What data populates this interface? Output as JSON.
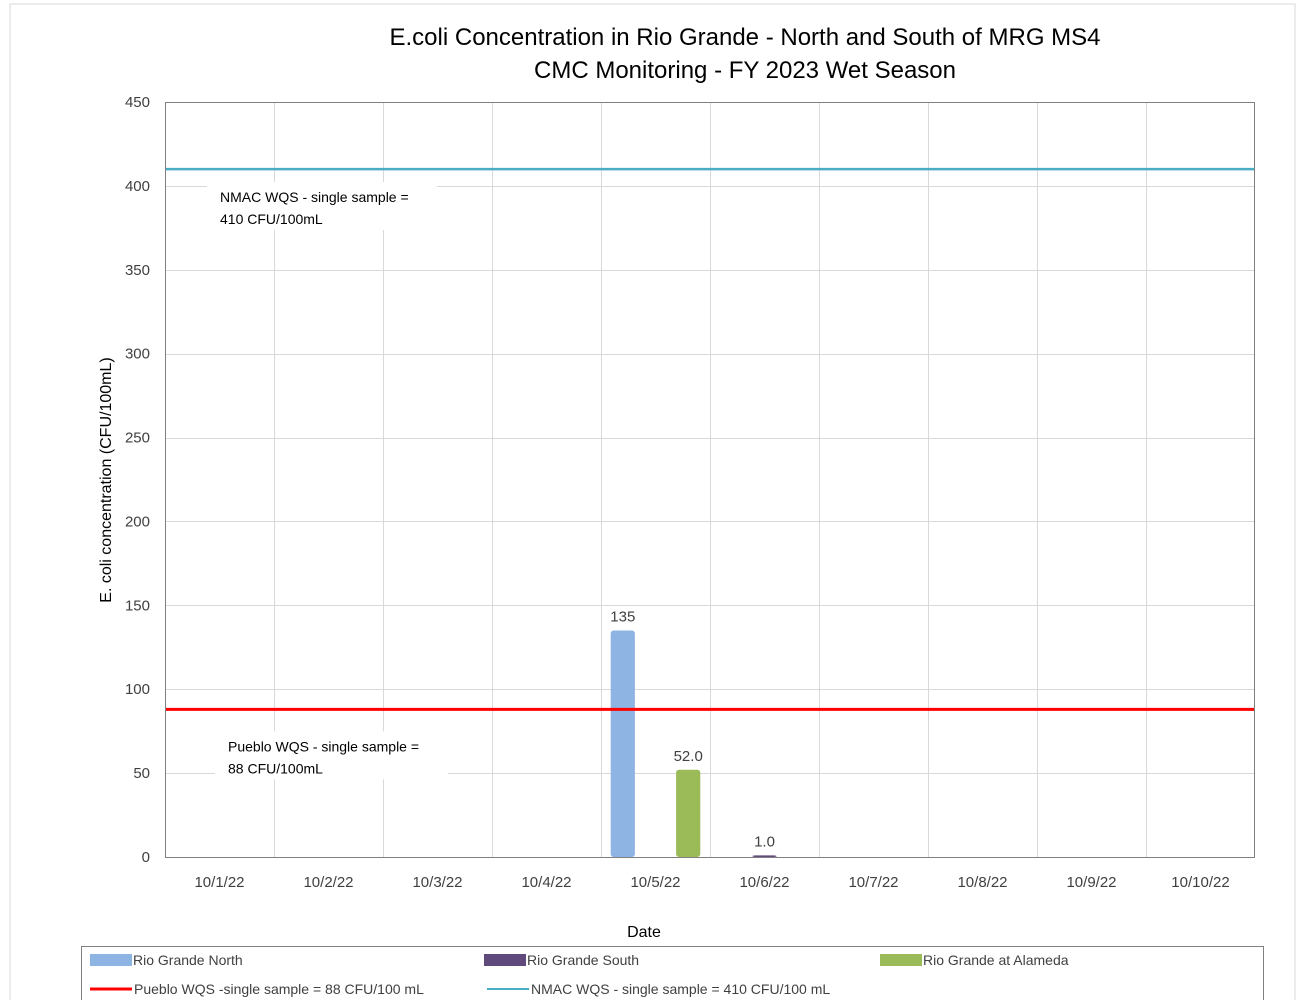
{
  "chart_data": {
    "type": "bar",
    "title": "E.coli Concentration in Rio Grande - North and South of MRG MS4",
    "subtitle": "CMC Monitoring - FY 2023 Wet Season",
    "xlabel": "Date",
    "ylabel": "E. coli concentration (CFU/100mL)",
    "ylim": [
      0,
      450
    ],
    "yticks": [
      0,
      50,
      100,
      150,
      200,
      250,
      300,
      350,
      400,
      450
    ],
    "grid": true,
    "legend_position": "bottom",
    "categories": [
      "10/1/22",
      "10/2/22",
      "10/3/22",
      "10/4/22",
      "10/5/22",
      "10/6/22",
      "10/7/22",
      "10/8/22",
      "10/9/22",
      "10/10/22"
    ],
    "series": [
      {
        "name": "Rio Grande North",
        "color": "#8eb4e3",
        "values": [
          null,
          null,
          null,
          null,
          135,
          null,
          null,
          null,
          null,
          null
        ],
        "labels": [
          null,
          null,
          null,
          null,
          "135",
          null,
          null,
          null,
          null,
          null
        ]
      },
      {
        "name": "Rio Grande South",
        "color": "#604a7b",
        "values": [
          null,
          null,
          null,
          null,
          null,
          1.0,
          null,
          null,
          null,
          null
        ],
        "labels": [
          null,
          null,
          null,
          null,
          null,
          "1.0",
          null,
          null,
          null,
          null
        ]
      },
      {
        "name": "Rio Grande at Alameda",
        "color": "#9bbb59",
        "values": [
          null,
          null,
          null,
          null,
          52.0,
          null,
          null,
          null,
          null,
          null
        ],
        "labels": [
          null,
          null,
          null,
          null,
          "52.0",
          null,
          null,
          null,
          null,
          null
        ]
      }
    ],
    "reference_lines": [
      {
        "name": "Pueblo WQS -single sample = 88 CFU/100 mL",
        "value": 88,
        "color": "#ff0000",
        "annotation": [
          "Pueblo WQS - single sample =",
          "88 CFU/100mL"
        ]
      },
      {
        "name": "NMAC WQS - single sample = 410 CFU/100 mL",
        "value": 410,
        "color": "#4bacc6",
        "annotation": [
          "NMAC WQS - single sample =",
          "410 CFU/100mL"
        ]
      }
    ]
  }
}
